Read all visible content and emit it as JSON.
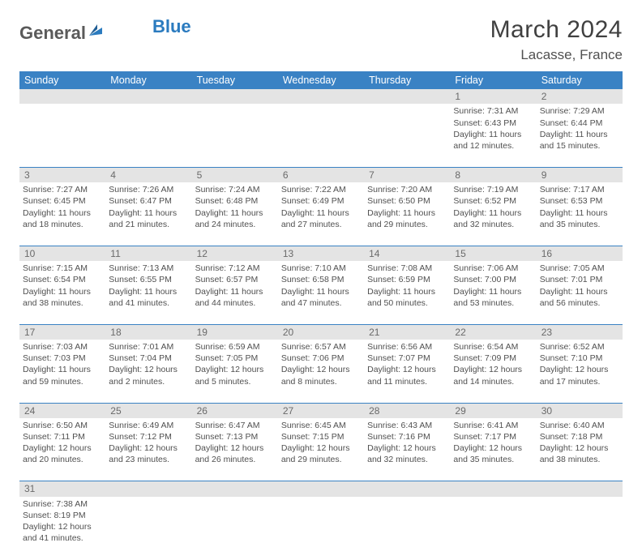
{
  "logo": {
    "general": "General",
    "blue": "Blue"
  },
  "title": "March 2024",
  "location": "Lacasse, France",
  "colors": {
    "header_bg": "#3a82c4",
    "header_text": "#ffffff",
    "daynum_bg": "#e4e4e4",
    "border": "#3a82c4",
    "logo_gray": "#5a5a5a",
    "logo_blue": "#2b7bbf"
  },
  "weekdays": [
    "Sunday",
    "Monday",
    "Tuesday",
    "Wednesday",
    "Thursday",
    "Friday",
    "Saturday"
  ],
  "weeks": [
    {
      "nums": [
        "",
        "",
        "",
        "",
        "",
        "1",
        "2"
      ],
      "cells": [
        null,
        null,
        null,
        null,
        null,
        {
          "sr": "Sunrise: 7:31 AM",
          "ss": "Sunset: 6:43 PM",
          "d1": "Daylight: 11 hours",
          "d2": "and 12 minutes."
        },
        {
          "sr": "Sunrise: 7:29 AM",
          "ss": "Sunset: 6:44 PM",
          "d1": "Daylight: 11 hours",
          "d2": "and 15 minutes."
        }
      ]
    },
    {
      "nums": [
        "3",
        "4",
        "5",
        "6",
        "7",
        "8",
        "9"
      ],
      "cells": [
        {
          "sr": "Sunrise: 7:27 AM",
          "ss": "Sunset: 6:45 PM",
          "d1": "Daylight: 11 hours",
          "d2": "and 18 minutes."
        },
        {
          "sr": "Sunrise: 7:26 AM",
          "ss": "Sunset: 6:47 PM",
          "d1": "Daylight: 11 hours",
          "d2": "and 21 minutes."
        },
        {
          "sr": "Sunrise: 7:24 AM",
          "ss": "Sunset: 6:48 PM",
          "d1": "Daylight: 11 hours",
          "d2": "and 24 minutes."
        },
        {
          "sr": "Sunrise: 7:22 AM",
          "ss": "Sunset: 6:49 PM",
          "d1": "Daylight: 11 hours",
          "d2": "and 27 minutes."
        },
        {
          "sr": "Sunrise: 7:20 AM",
          "ss": "Sunset: 6:50 PM",
          "d1": "Daylight: 11 hours",
          "d2": "and 29 minutes."
        },
        {
          "sr": "Sunrise: 7:19 AM",
          "ss": "Sunset: 6:52 PM",
          "d1": "Daylight: 11 hours",
          "d2": "and 32 minutes."
        },
        {
          "sr": "Sunrise: 7:17 AM",
          "ss": "Sunset: 6:53 PM",
          "d1": "Daylight: 11 hours",
          "d2": "and 35 minutes."
        }
      ]
    },
    {
      "nums": [
        "10",
        "11",
        "12",
        "13",
        "14",
        "15",
        "16"
      ],
      "cells": [
        {
          "sr": "Sunrise: 7:15 AM",
          "ss": "Sunset: 6:54 PM",
          "d1": "Daylight: 11 hours",
          "d2": "and 38 minutes."
        },
        {
          "sr": "Sunrise: 7:13 AM",
          "ss": "Sunset: 6:55 PM",
          "d1": "Daylight: 11 hours",
          "d2": "and 41 minutes."
        },
        {
          "sr": "Sunrise: 7:12 AM",
          "ss": "Sunset: 6:57 PM",
          "d1": "Daylight: 11 hours",
          "d2": "and 44 minutes."
        },
        {
          "sr": "Sunrise: 7:10 AM",
          "ss": "Sunset: 6:58 PM",
          "d1": "Daylight: 11 hours",
          "d2": "and 47 minutes."
        },
        {
          "sr": "Sunrise: 7:08 AM",
          "ss": "Sunset: 6:59 PM",
          "d1": "Daylight: 11 hours",
          "d2": "and 50 minutes."
        },
        {
          "sr": "Sunrise: 7:06 AM",
          "ss": "Sunset: 7:00 PM",
          "d1": "Daylight: 11 hours",
          "d2": "and 53 minutes."
        },
        {
          "sr": "Sunrise: 7:05 AM",
          "ss": "Sunset: 7:01 PM",
          "d1": "Daylight: 11 hours",
          "d2": "and 56 minutes."
        }
      ]
    },
    {
      "nums": [
        "17",
        "18",
        "19",
        "20",
        "21",
        "22",
        "23"
      ],
      "cells": [
        {
          "sr": "Sunrise: 7:03 AM",
          "ss": "Sunset: 7:03 PM",
          "d1": "Daylight: 11 hours",
          "d2": "and 59 minutes."
        },
        {
          "sr": "Sunrise: 7:01 AM",
          "ss": "Sunset: 7:04 PM",
          "d1": "Daylight: 12 hours",
          "d2": "and 2 minutes."
        },
        {
          "sr": "Sunrise: 6:59 AM",
          "ss": "Sunset: 7:05 PM",
          "d1": "Daylight: 12 hours",
          "d2": "and 5 minutes."
        },
        {
          "sr": "Sunrise: 6:57 AM",
          "ss": "Sunset: 7:06 PM",
          "d1": "Daylight: 12 hours",
          "d2": "and 8 minutes."
        },
        {
          "sr": "Sunrise: 6:56 AM",
          "ss": "Sunset: 7:07 PM",
          "d1": "Daylight: 12 hours",
          "d2": "and 11 minutes."
        },
        {
          "sr": "Sunrise: 6:54 AM",
          "ss": "Sunset: 7:09 PM",
          "d1": "Daylight: 12 hours",
          "d2": "and 14 minutes."
        },
        {
          "sr": "Sunrise: 6:52 AM",
          "ss": "Sunset: 7:10 PM",
          "d1": "Daylight: 12 hours",
          "d2": "and 17 minutes."
        }
      ]
    },
    {
      "nums": [
        "24",
        "25",
        "26",
        "27",
        "28",
        "29",
        "30"
      ],
      "cells": [
        {
          "sr": "Sunrise: 6:50 AM",
          "ss": "Sunset: 7:11 PM",
          "d1": "Daylight: 12 hours",
          "d2": "and 20 minutes."
        },
        {
          "sr": "Sunrise: 6:49 AM",
          "ss": "Sunset: 7:12 PM",
          "d1": "Daylight: 12 hours",
          "d2": "and 23 minutes."
        },
        {
          "sr": "Sunrise: 6:47 AM",
          "ss": "Sunset: 7:13 PM",
          "d1": "Daylight: 12 hours",
          "d2": "and 26 minutes."
        },
        {
          "sr": "Sunrise: 6:45 AM",
          "ss": "Sunset: 7:15 PM",
          "d1": "Daylight: 12 hours",
          "d2": "and 29 minutes."
        },
        {
          "sr": "Sunrise: 6:43 AM",
          "ss": "Sunset: 7:16 PM",
          "d1": "Daylight: 12 hours",
          "d2": "and 32 minutes."
        },
        {
          "sr": "Sunrise: 6:41 AM",
          "ss": "Sunset: 7:17 PM",
          "d1": "Daylight: 12 hours",
          "d2": "and 35 minutes."
        },
        {
          "sr": "Sunrise: 6:40 AM",
          "ss": "Sunset: 7:18 PM",
          "d1": "Daylight: 12 hours",
          "d2": "and 38 minutes."
        }
      ]
    },
    {
      "nums": [
        "31",
        "",
        "",
        "",
        "",
        "",
        ""
      ],
      "cells": [
        {
          "sr": "Sunrise: 7:38 AM",
          "ss": "Sunset: 8:19 PM",
          "d1": "Daylight: 12 hours",
          "d2": "and 41 minutes."
        },
        null,
        null,
        null,
        null,
        null,
        null
      ]
    }
  ]
}
